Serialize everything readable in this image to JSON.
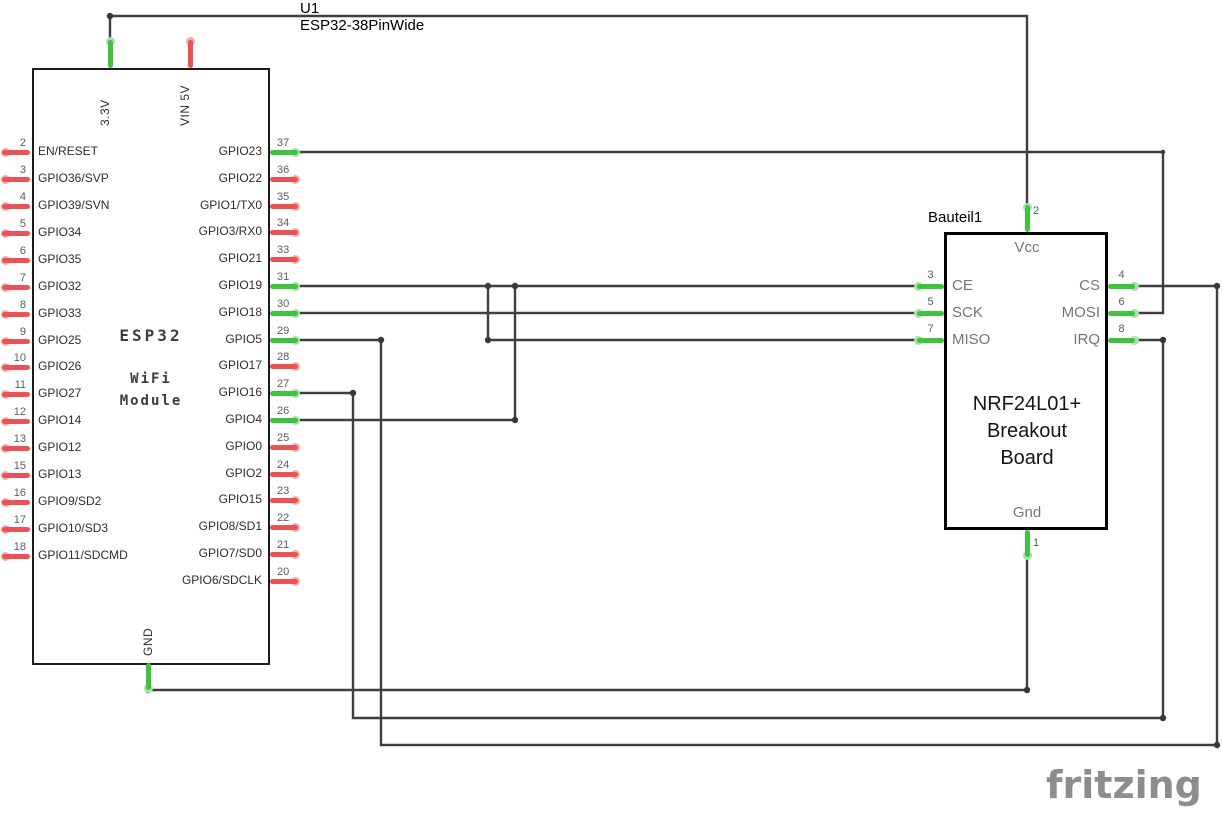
{
  "schematic": {
    "u1_ref": "U1",
    "u1_part": "ESP32-38PinWide",
    "nrf_ref": "Bauteil1"
  },
  "esp32": {
    "title": "ESP32",
    "subtitle1": "WiFi",
    "subtitle2": "Module",
    "top_pins": [
      {
        "label": "3.3V",
        "connected": true
      },
      {
        "label": "VIN 5V",
        "connected": false
      }
    ],
    "bottom_pins": [
      {
        "label": "GND",
        "connected": true
      }
    ],
    "left_pins": [
      {
        "num": "2",
        "label": "EN/RESET",
        "connected": false
      },
      {
        "num": "3",
        "label": "GPIO36/SVP",
        "connected": false
      },
      {
        "num": "4",
        "label": "GPIO39/SVN",
        "connected": false
      },
      {
        "num": "5",
        "label": "GPIO34",
        "connected": false
      },
      {
        "num": "6",
        "label": "GPIO35",
        "connected": false
      },
      {
        "num": "7",
        "label": "GPIO32",
        "connected": false
      },
      {
        "num": "8",
        "label": "GPIO33",
        "connected": false
      },
      {
        "num": "9",
        "label": "GPIO25",
        "connected": false
      },
      {
        "num": "10",
        "label": "GPIO26",
        "connected": false
      },
      {
        "num": "11",
        "label": "GPIO27",
        "connected": false
      },
      {
        "num": "12",
        "label": "GPIO14",
        "connected": false
      },
      {
        "num": "13",
        "label": "GPIO12",
        "connected": false
      },
      {
        "num": "15",
        "label": "GPIO13",
        "connected": false
      },
      {
        "num": "16",
        "label": "GPIO9/SD2",
        "connected": false
      },
      {
        "num": "17",
        "label": "GPIO10/SD3",
        "connected": false
      },
      {
        "num": "18",
        "label": "GPIO11/SDCMD",
        "connected": false
      }
    ],
    "right_pins": [
      {
        "num": "37",
        "label": "GPIO23",
        "connected": true
      },
      {
        "num": "36",
        "label": "GPIO22",
        "connected": false
      },
      {
        "num": "35",
        "label": "GPIO1/TX0",
        "connected": false
      },
      {
        "num": "34",
        "label": "GPIO3/RX0",
        "connected": false
      },
      {
        "num": "33",
        "label": "GPIO21",
        "connected": false
      },
      {
        "num": "31",
        "label": "GPIO19",
        "connected": true
      },
      {
        "num": "30",
        "label": "GPIO18",
        "connected": true
      },
      {
        "num": "29",
        "label": "GPIO5",
        "connected": true
      },
      {
        "num": "28",
        "label": "GPIO17",
        "connected": false
      },
      {
        "num": "27",
        "label": "GPIO16",
        "connected": true
      },
      {
        "num": "26",
        "label": "GPIO4",
        "connected": true
      },
      {
        "num": "25",
        "label": "GPIO0",
        "connected": false
      },
      {
        "num": "24",
        "label": "GPIO2",
        "connected": false
      },
      {
        "num": "23",
        "label": "GPIO15",
        "connected": false
      },
      {
        "num": "22",
        "label": "GPIO8/SD1",
        "connected": false
      },
      {
        "num": "21",
        "label": "GPIO7/SD0",
        "connected": false
      },
      {
        "num": "20",
        "label": "GPIO6/SDCLK",
        "connected": false
      }
    ]
  },
  "nrf": {
    "title_lines": [
      "NRF24L01+",
      "Breakout",
      "Board"
    ],
    "top_pin": {
      "num": "2",
      "label": "Vcc"
    },
    "bottom_pin": {
      "num": "1",
      "label": "Gnd"
    },
    "left_pins": [
      {
        "num": "3",
        "label": "CE"
      },
      {
        "num": "5",
        "label": "SCK"
      },
      {
        "num": "7",
        "label": "MISO"
      }
    ],
    "right_pins": [
      {
        "num": "4",
        "label": "CS"
      },
      {
        "num": "6",
        "label": "MOSI"
      },
      {
        "num": "8",
        "label": "IRQ"
      }
    ]
  },
  "logo_text": "fritzing",
  "colors": {
    "wire": "#3f3f3f",
    "junction_dot": "#383838",
    "pin_connected": "#3fc33f",
    "pin_unconnected": "#ed5153",
    "halo_connected": "#a5e2a5",
    "halo_unconnected": "#f5abac",
    "pin_number": "#5c5c5c",
    "pin_label": "#2e2e2e",
    "nrf_pin_label": "#757575",
    "logo": "#8d8d8d"
  }
}
